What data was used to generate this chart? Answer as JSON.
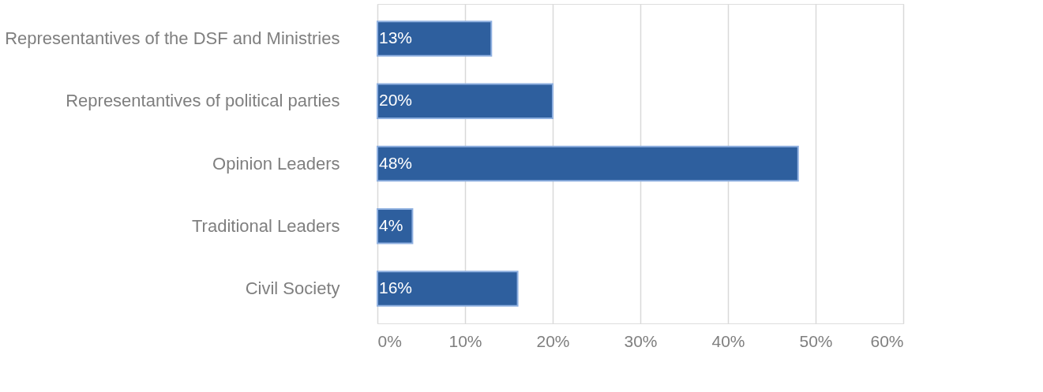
{
  "chart_data": {
    "type": "bar",
    "orientation": "horizontal",
    "categories": [
      "Representantives of the DSF and Ministries",
      "Representantives of political parties",
      "Opinion Leaders",
      "Traditional Leaders",
      "Civil Society"
    ],
    "values": [
      13,
      20,
      48,
      4,
      16
    ],
    "value_labels": [
      "13%",
      "20%",
      "48%",
      "4%",
      "16%"
    ],
    "color": "#2e5f9e",
    "xlim": [
      0,
      60
    ],
    "xticks": [
      {
        "value": 0,
        "label": "0%"
      },
      {
        "value": 10,
        "label": "10%"
      },
      {
        "value": 20,
        "label": "20%"
      },
      {
        "value": 30,
        "label": "30%"
      },
      {
        "value": 40,
        "label": "40%"
      },
      {
        "value": 50,
        "label": "50%"
      },
      {
        "value": 60,
        "label": "60%"
      }
    ],
    "grid": "x"
  }
}
